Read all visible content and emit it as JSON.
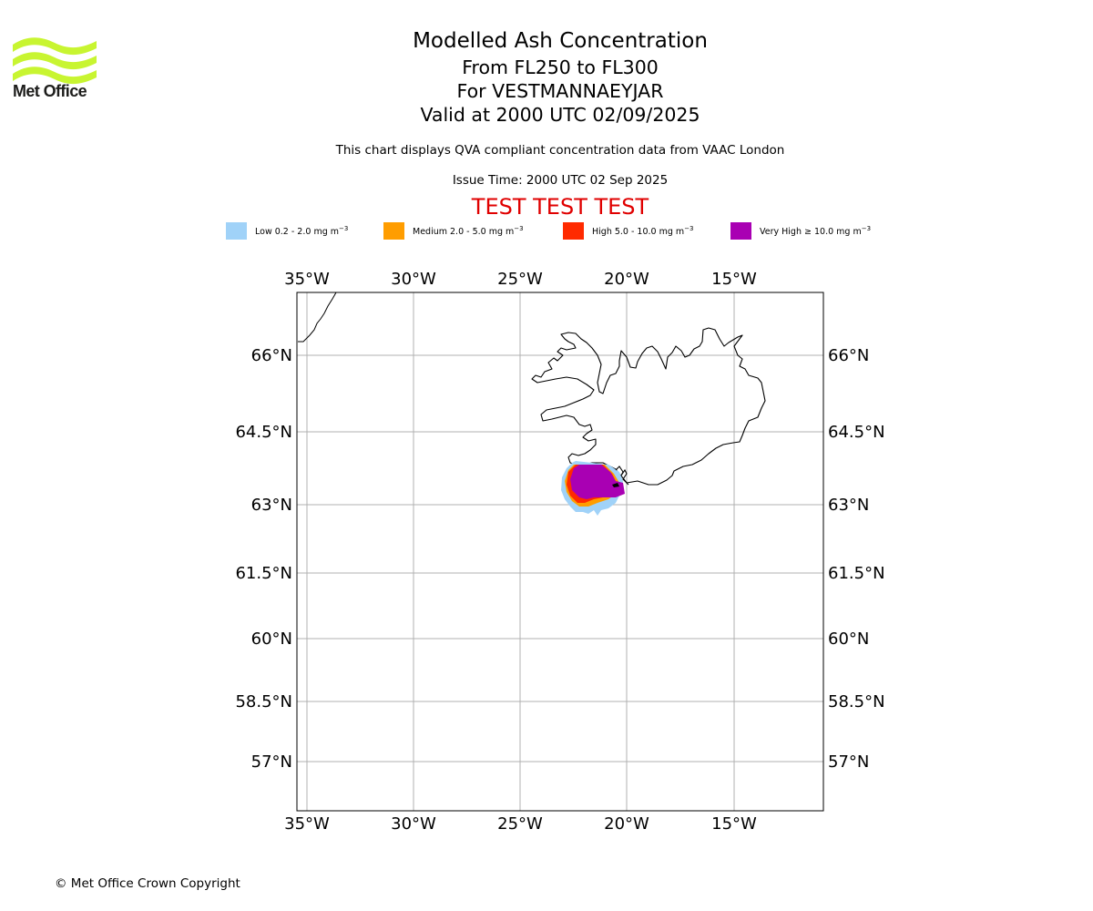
{
  "header": {
    "logo_label": "Met Office",
    "title": "Modelled Ash Concentration",
    "level_range": "From FL250 to FL300",
    "volcano": "For VESTMANNAEYJAR",
    "valid_time": "Valid at 2000 UTC 02/09/2025",
    "subtitle": "This chart displays QVA compliant concentration data from VAAC London",
    "issue_time": "Issue Time: 2000 UTC 02 Sep 2025",
    "test_banner": "TEST TEST TEST"
  },
  "legend": {
    "unit_suffix": "mg m",
    "unit_exponent": "−3",
    "items": [
      {
        "label": "Low 0.2 - 2.0",
        "color": "#a0d2f8"
      },
      {
        "label": "Medium 2.0 - 5.0",
        "color": "#ff9d00"
      },
      {
        "label": "High 5.0 - 10.0",
        "color": "#ff2a00"
      },
      {
        "label": "Very High ≥ 10.0",
        "color": "#a900b3"
      }
    ]
  },
  "map": {
    "lon_ticks": [
      "35°W",
      "30°W",
      "25°W",
      "20°W",
      "15°W"
    ],
    "lat_ticks": [
      "66°N",
      "64.5°N",
      "63°N",
      "61.5°N",
      "60°N",
      "58.5°N",
      "57°N"
    ],
    "grid": true,
    "coastline_color": "#000000",
    "grid_color": "#b0b0b0"
  },
  "footer": {
    "copyright": "© Met Office Crown Copyright"
  }
}
